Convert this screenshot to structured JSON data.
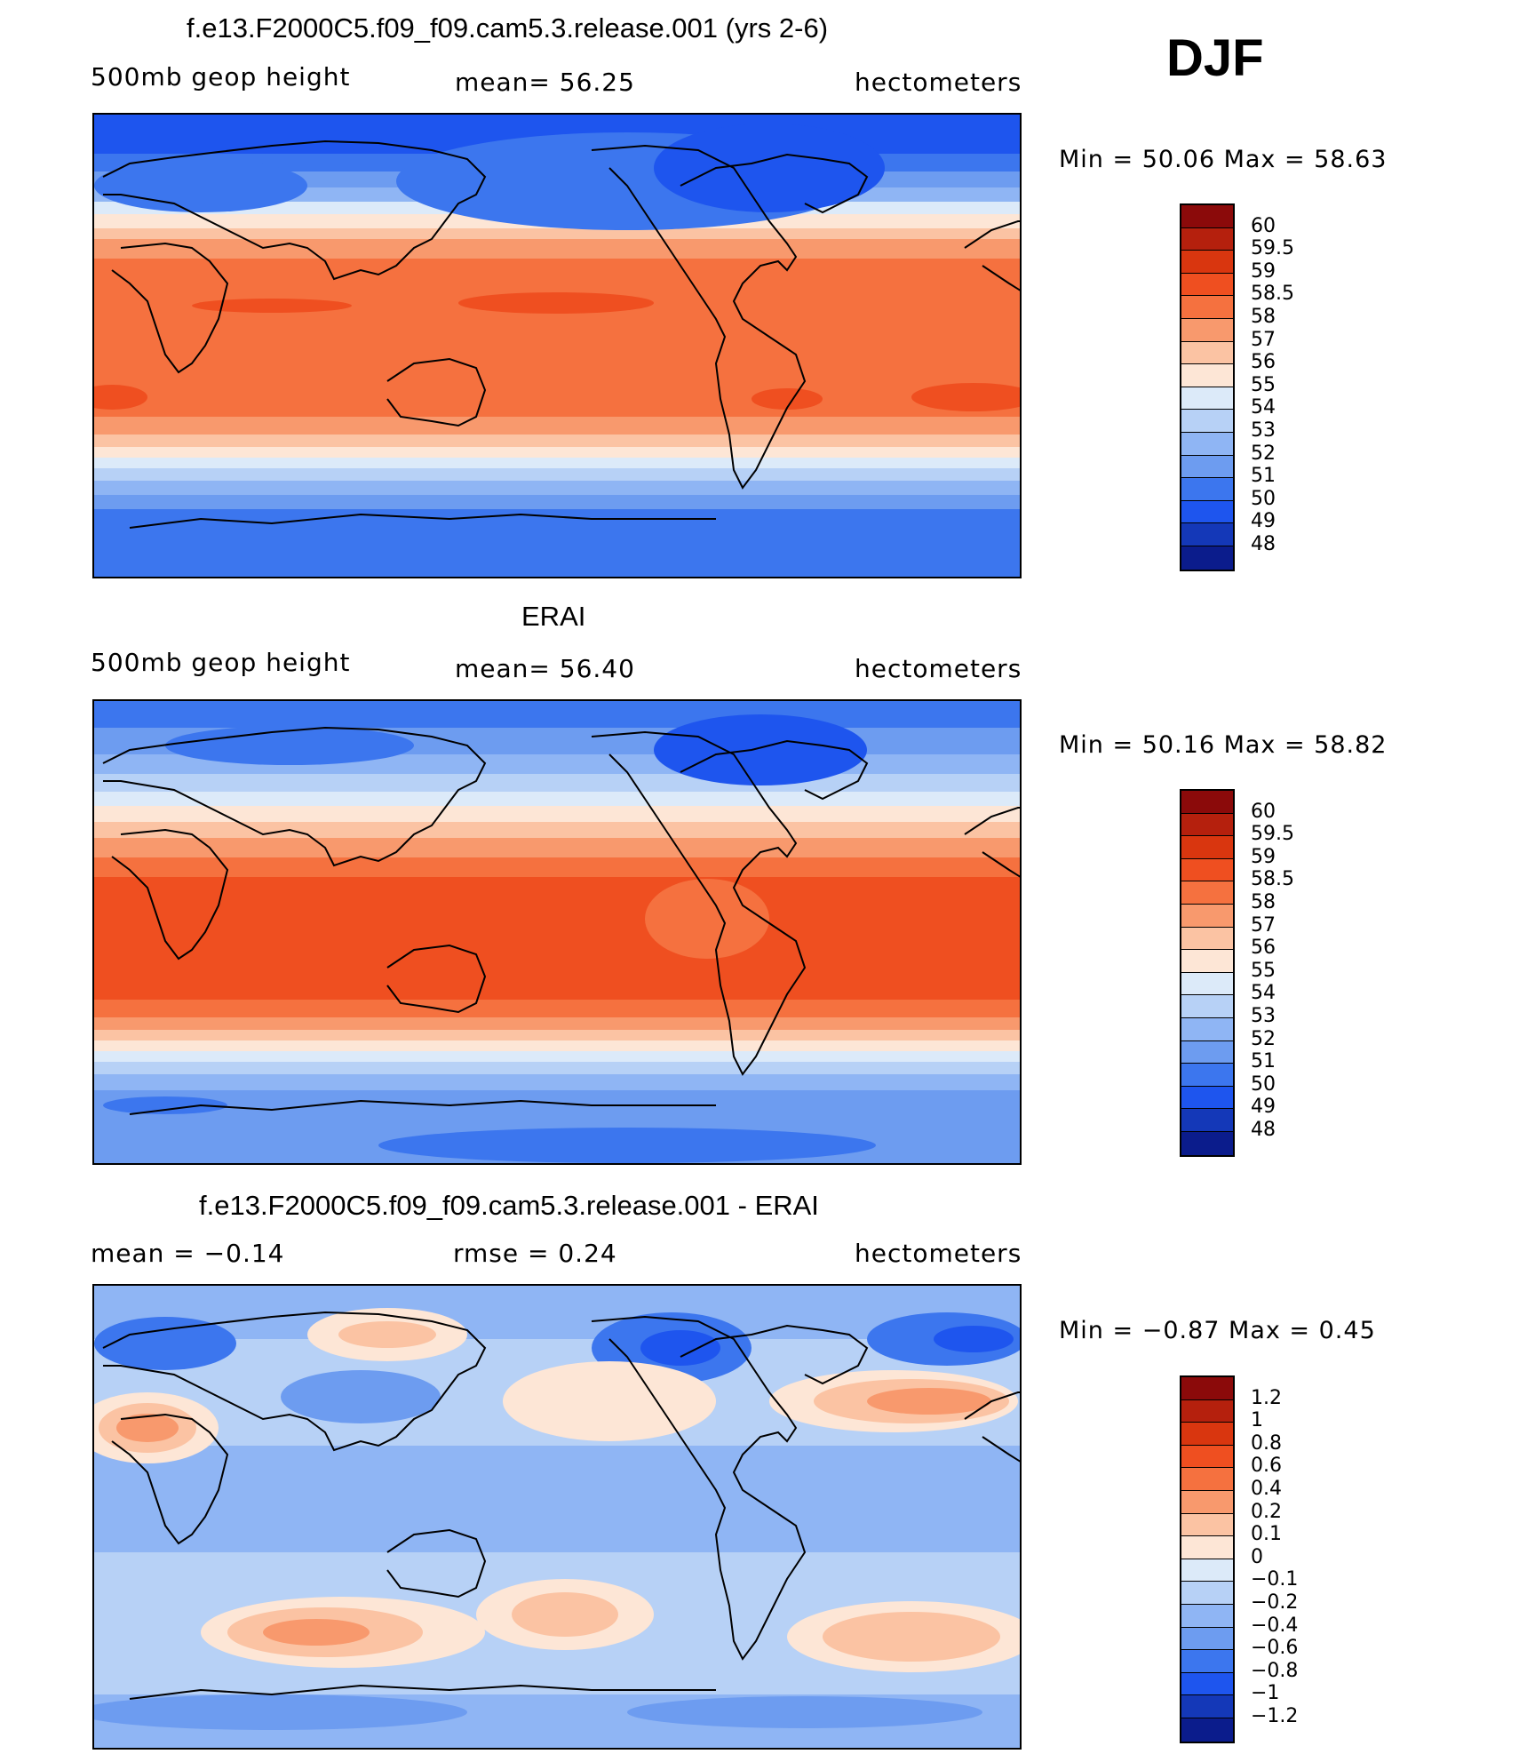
{
  "season": "DJF",
  "panels": [
    {
      "title": "f.e13.F2000C5.f09_f09.cam5.3.release.001 (yrs 2-6)",
      "left_label": "500mb  geop  height",
      "center_label": "mean=   56.25",
      "right_label": "hectometers",
      "minmax": "Min  =    50.06  Max  =    58.63"
    },
    {
      "title": "ERAI",
      "left_label": "500mb  geop  height",
      "center_label": "mean=   56.40",
      "right_label": "hectometers",
      "minmax": "Min  =    50.16  Max  =    58.82"
    },
    {
      "title": "f.e13.F2000C5.f09_f09.cam5.3.release.001 - ERAI",
      "left_label": "mean  =    −0.14",
      "center_label": "rmse  =     0.24",
      "right_label": "hectometers",
      "minmax": "Min  =   −0.87  Max  =      0.45"
    }
  ],
  "colorbars": {
    "field": {
      "labels": [
        "60",
        "59.5",
        "59",
        "58.5",
        "58",
        "57",
        "56",
        "55",
        "54",
        "53",
        "52",
        "51",
        "50",
        "49",
        "48"
      ],
      "colors": [
        "#8b0a0a",
        "#b5200d",
        "#d9360f",
        "#ef4f20",
        "#f5713f",
        "#f8996d",
        "#fbc3a3",
        "#fde6d6",
        "#dceaf9",
        "#b7d1f6",
        "#8fb5f4",
        "#6d9cf0",
        "#3c76ee",
        "#1e55ee",
        "#1438b8",
        "#0b1c8c"
      ]
    },
    "diff": {
      "labels": [
        "1.2",
        "1",
        "0.8",
        "0.6",
        "0.4",
        "0.2",
        "0.1",
        "0",
        "−0.1",
        "−0.2",
        "−0.4",
        "−0.6",
        "−0.8",
        "−1",
        "−1.2"
      ],
      "colors": [
        "#8b0a0a",
        "#b5200d",
        "#d9360f",
        "#ef4f20",
        "#f5713f",
        "#f8996d",
        "#fbc3a3",
        "#fde6d6",
        "#dceaf9",
        "#b7d1f6",
        "#8fb5f4",
        "#6d9cf0",
        "#3c76ee",
        "#1e55ee",
        "#1438b8",
        "#0b1c8c"
      ]
    }
  }
}
